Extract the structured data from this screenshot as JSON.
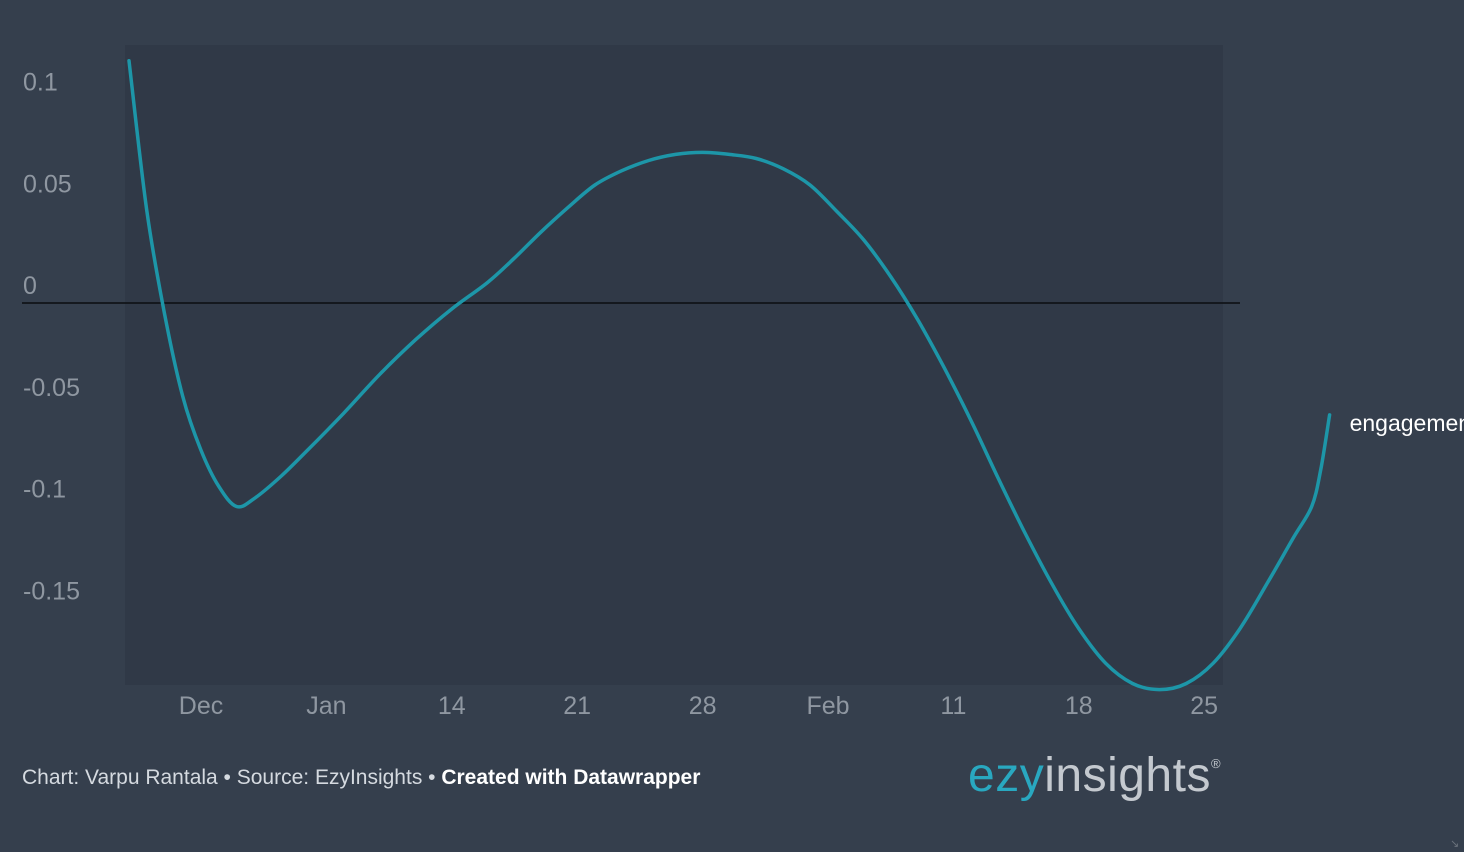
{
  "chart_data": {
    "type": "line",
    "title": "",
    "xlabel": "",
    "ylabel": "",
    "y_ticks": [
      "0.1",
      "0.05",
      "0",
      "-0.05",
      "-0.1",
      "-0.15"
    ],
    "x_ticks": [
      "Dec",
      "Jan",
      "14",
      "21",
      "28",
      "Feb",
      "11",
      "18",
      "25"
    ],
    "ylim": [
      -0.19,
      0.11
    ],
    "grid": false,
    "series": [
      {
        "name": "engagement",
        "color": "#1d96a8",
        "points": [
          {
            "x": "2017-11-26",
            "y": 0.119
          },
          {
            "x": "2017-11-28",
            "y": 0.045
          },
          {
            "x": "2017-11-30",
            "y": -0.006
          },
          {
            "x": "2017-12-02",
            "y": -0.046
          },
          {
            "x": "2017-12-04",
            "y": -0.072
          },
          {
            "x": "2017-12-06",
            "y": -0.09
          },
          {
            "x": "2017-12-08",
            "y": -0.1
          },
          {
            "x": "2017-12-10",
            "y": -0.096
          },
          {
            "x": "2017-12-13",
            "y": -0.085
          },
          {
            "x": "2017-12-16",
            "y": -0.072
          },
          {
            "x": "2017-12-20",
            "y": -0.054
          },
          {
            "x": "2017-12-24",
            "y": -0.035
          },
          {
            "x": "2017-12-28",
            "y": -0.018
          },
          {
            "x": "2018-01-01",
            "y": -0.003
          },
          {
            "x": "2018-01-05",
            "y": 0.01
          },
          {
            "x": "2018-01-08",
            "y": 0.022
          },
          {
            "x": "2018-01-11",
            "y": 0.035
          },
          {
            "x": "2018-01-14",
            "y": 0.047
          },
          {
            "x": "2018-01-17",
            "y": 0.058
          },
          {
            "x": "2018-01-20",
            "y": 0.065
          },
          {
            "x": "2018-01-23",
            "y": 0.07
          },
          {
            "x": "2018-01-26",
            "y": 0.073
          },
          {
            "x": "2018-01-29",
            "y": 0.074
          },
          {
            "x": "2018-02-01",
            "y": 0.073
          },
          {
            "x": "2018-02-04",
            "y": 0.071
          },
          {
            "x": "2018-02-07",
            "y": 0.066
          },
          {
            "x": "2018-02-10",
            "y": 0.058
          },
          {
            "x": "2018-02-13",
            "y": 0.045
          },
          {
            "x": "2018-02-16",
            "y": 0.031
          },
          {
            "x": "2018-02-19",
            "y": 0.013
          },
          {
            "x": "2018-02-22",
            "y": -0.008
          },
          {
            "x": "2018-02-25",
            "y": -0.032
          },
          {
            "x": "2018-02-28",
            "y": -0.058
          },
          {
            "x": "2018-03-03",
            "y": -0.086
          },
          {
            "x": "2018-03-06",
            "y": -0.113
          },
          {
            "x": "2018-03-09",
            "y": -0.138
          },
          {
            "x": "2018-03-12",
            "y": -0.16
          },
          {
            "x": "2018-03-15",
            "y": -0.177
          },
          {
            "x": "2018-03-18",
            "y": -0.187
          },
          {
            "x": "2018-03-21",
            "y": -0.19
          },
          {
            "x": "2018-03-24",
            "y": -0.187
          },
          {
            "x": "2018-03-27",
            "y": -0.177
          },
          {
            "x": "2018-03-30",
            "y": -0.16
          },
          {
            "x": "2018-04-02",
            "y": -0.138
          },
          {
            "x": "2018-04-05",
            "y": -0.115
          },
          {
            "x": "2018-04-07",
            "y": -0.1
          },
          {
            "x": "2018-04-08",
            "y": -0.082
          },
          {
            "x": "2018-04-09",
            "y": -0.055
          }
        ]
      }
    ]
  },
  "footer": {
    "credit": "Chart: Varpu Rantala • Source: EzyInsights • ",
    "created_with": "Created with Datawrapper"
  },
  "logo": {
    "part1": "ezy",
    "part2": "insights",
    "registered": "®"
  }
}
